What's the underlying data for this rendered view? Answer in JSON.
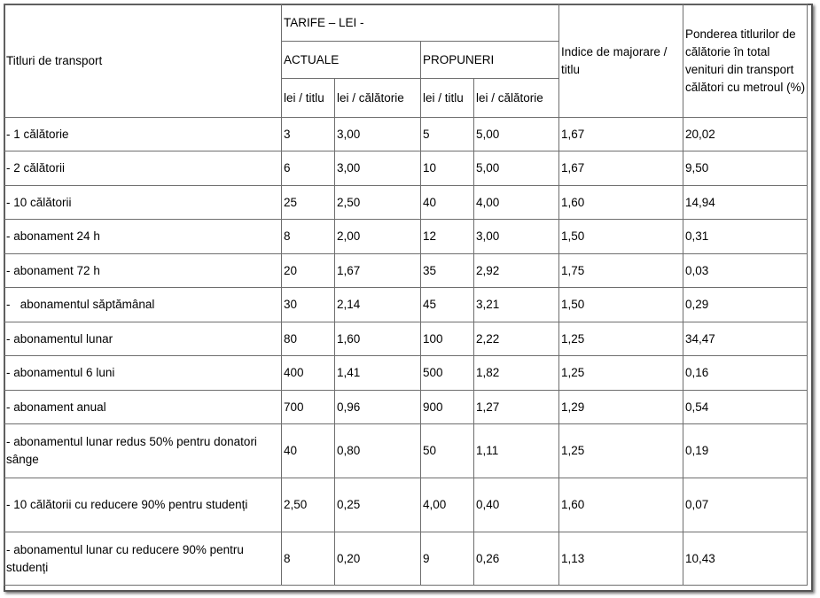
{
  "header": {
    "row_label": "Titluri de  transport",
    "tarife": "TARIFE – LEI -",
    "actuale": "ACTUALE",
    "propuneri": "PROPUNERI",
    "lei_titlu_1": "lei / titlu",
    "lei_calatorie_1": "lei / călătorie",
    "lei_titlu_2": "lei / titlu",
    "lei_calatorie_2": "lei / călătorie",
    "indice": "Indice de majorare / titlu",
    "ponderea": "Ponderea titlurilor de călătorie în total venituri din transport călători cu metroul (%)"
  },
  "rows": [
    {
      "title": "- 1 călătorie",
      "act_titlu": "3",
      "act_cal": "3,00",
      "prop_titlu": "5",
      "prop_cal": "5,00",
      "indice": "1,67",
      "pondere": "20,02"
    },
    {
      "title": "- 2 călătorii",
      "act_titlu": "6",
      "act_cal": "3,00",
      "prop_titlu": "10",
      "prop_cal": "5,00",
      "indice": "1,67",
      "pondere": "9,50"
    },
    {
      "title": "- 10 călătorii",
      "act_titlu": "25",
      "act_cal": "2,50",
      "prop_titlu": "40",
      "prop_cal": "4,00",
      "indice": "1,60",
      "pondere": "14,94"
    },
    {
      "title": "- abonament 24 h",
      "act_titlu": "8",
      "act_cal": "2,00",
      "prop_titlu": "12",
      "prop_cal": "3,00",
      "indice": "1,50",
      "pondere": "0,31"
    },
    {
      "title": "- abonament 72 h",
      "act_titlu": "20",
      "act_cal": "1,67",
      "prop_titlu": "35",
      "prop_cal": "2,92",
      "indice": "1,75",
      "pondere": "0,03"
    },
    {
      "title": "-   abonamentul săptămânal",
      "act_titlu": "30",
      "act_cal": "2,14",
      "prop_titlu": "45",
      "prop_cal": "3,21",
      "indice": "1,50",
      "pondere": "0,29"
    },
    {
      "title": "- abonamentul lunar",
      "act_titlu": "80",
      "act_cal": "1,60",
      "prop_titlu": "100",
      "prop_cal": "2,22",
      "indice": "1,25",
      "pondere": "34,47"
    },
    {
      "title": "- abonamentul 6 luni",
      "act_titlu": "400",
      "act_cal": "1,41",
      "prop_titlu": "500",
      "prop_cal": "1,82",
      "indice": "1,25",
      "pondere": "0,16"
    },
    {
      "title": "- abonament anual",
      "act_titlu": "700",
      "act_cal": "0,96",
      "prop_titlu": "900",
      "prop_cal": "1,27",
      "indice": "1,29",
      "pondere": "0,54"
    },
    {
      "title": "-   abonamentul lunar redus 50% pentru donatori sânge",
      "act_titlu": "40",
      "act_cal": "0,80",
      "prop_titlu": "50",
      "prop_cal": "1,11",
      "indice": "1,25",
      "pondere": "0,19"
    },
    {
      "title": "-     10 călătorii cu reducere 90% pentru studenți",
      "act_titlu": "2,50",
      "act_cal": "0,25",
      "prop_titlu": "4,00",
      "prop_cal": "0,40",
      "indice": "1,60",
      "pondere": "0,07"
    },
    {
      "title": "- abonamentul lunar cu reducere 90% pentru studenți",
      "act_titlu": "8",
      "act_cal": "0,20",
      "prop_titlu": "9",
      "prop_cal": "0,26",
      "indice": "1,13",
      "pondere": "10,43"
    }
  ]
}
